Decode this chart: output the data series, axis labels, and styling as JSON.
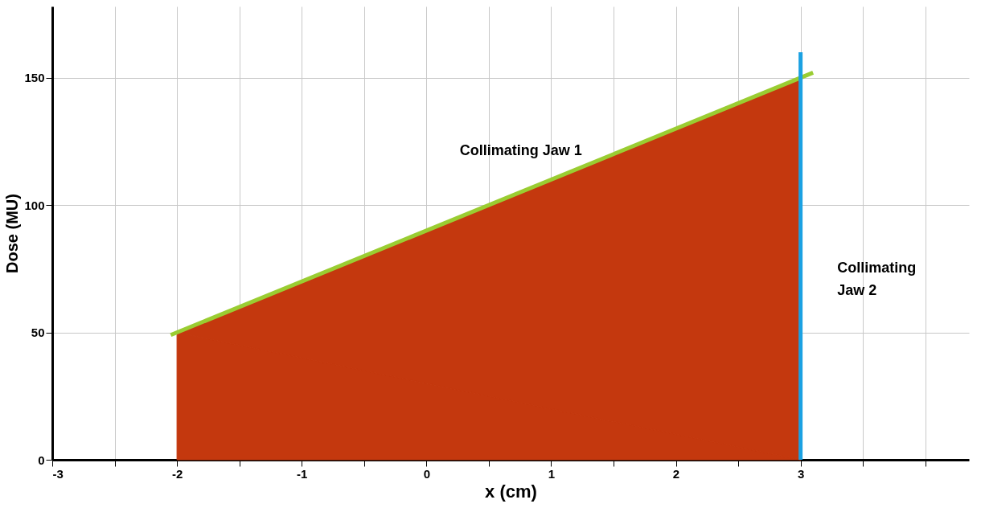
{
  "chart_data": {
    "type": "area",
    "xlabel": "x (cm)",
    "ylabel": "Dose (MU)",
    "xlim": [
      -3,
      4.35
    ],
    "ylim": [
      0,
      178
    ],
    "xticks": [
      -3,
      {
        "value": -2.5,
        "label": null
      },
      -2,
      {
        "value": -1.5,
        "label": null
      },
      -1,
      {
        "value": -0.5,
        "label": null
      },
      0,
      {
        "value": 0.5,
        "label": null
      },
      1,
      {
        "value": 1.5,
        "label": null
      },
      2,
      {
        "value": 2.5,
        "label": null
      },
      3,
      {
        "value": 3.5,
        "label": null
      },
      {
        "value": 4,
        "label": null
      }
    ],
    "yticks": [
      0,
      50,
      100,
      150
    ],
    "grid": true,
    "series": [
      {
        "color": "#c4380e",
        "x": [
          -2,
          3
        ],
        "values": [
          50,
          150
        ]
      },
      {
        "type": "line",
        "color": "#9acd32",
        "x": [
          -2.05,
          3.1
        ],
        "values": [
          49,
          152
        ]
      },
      {
        "type": "line",
        "color": "#1ba1e2",
        "x": [
          3,
          3
        ],
        "values": [
          0,
          160
        ]
      }
    ],
    "annotations": [
      "Collimating Jaw 1",
      "Collimating Jaw 2"
    ]
  }
}
